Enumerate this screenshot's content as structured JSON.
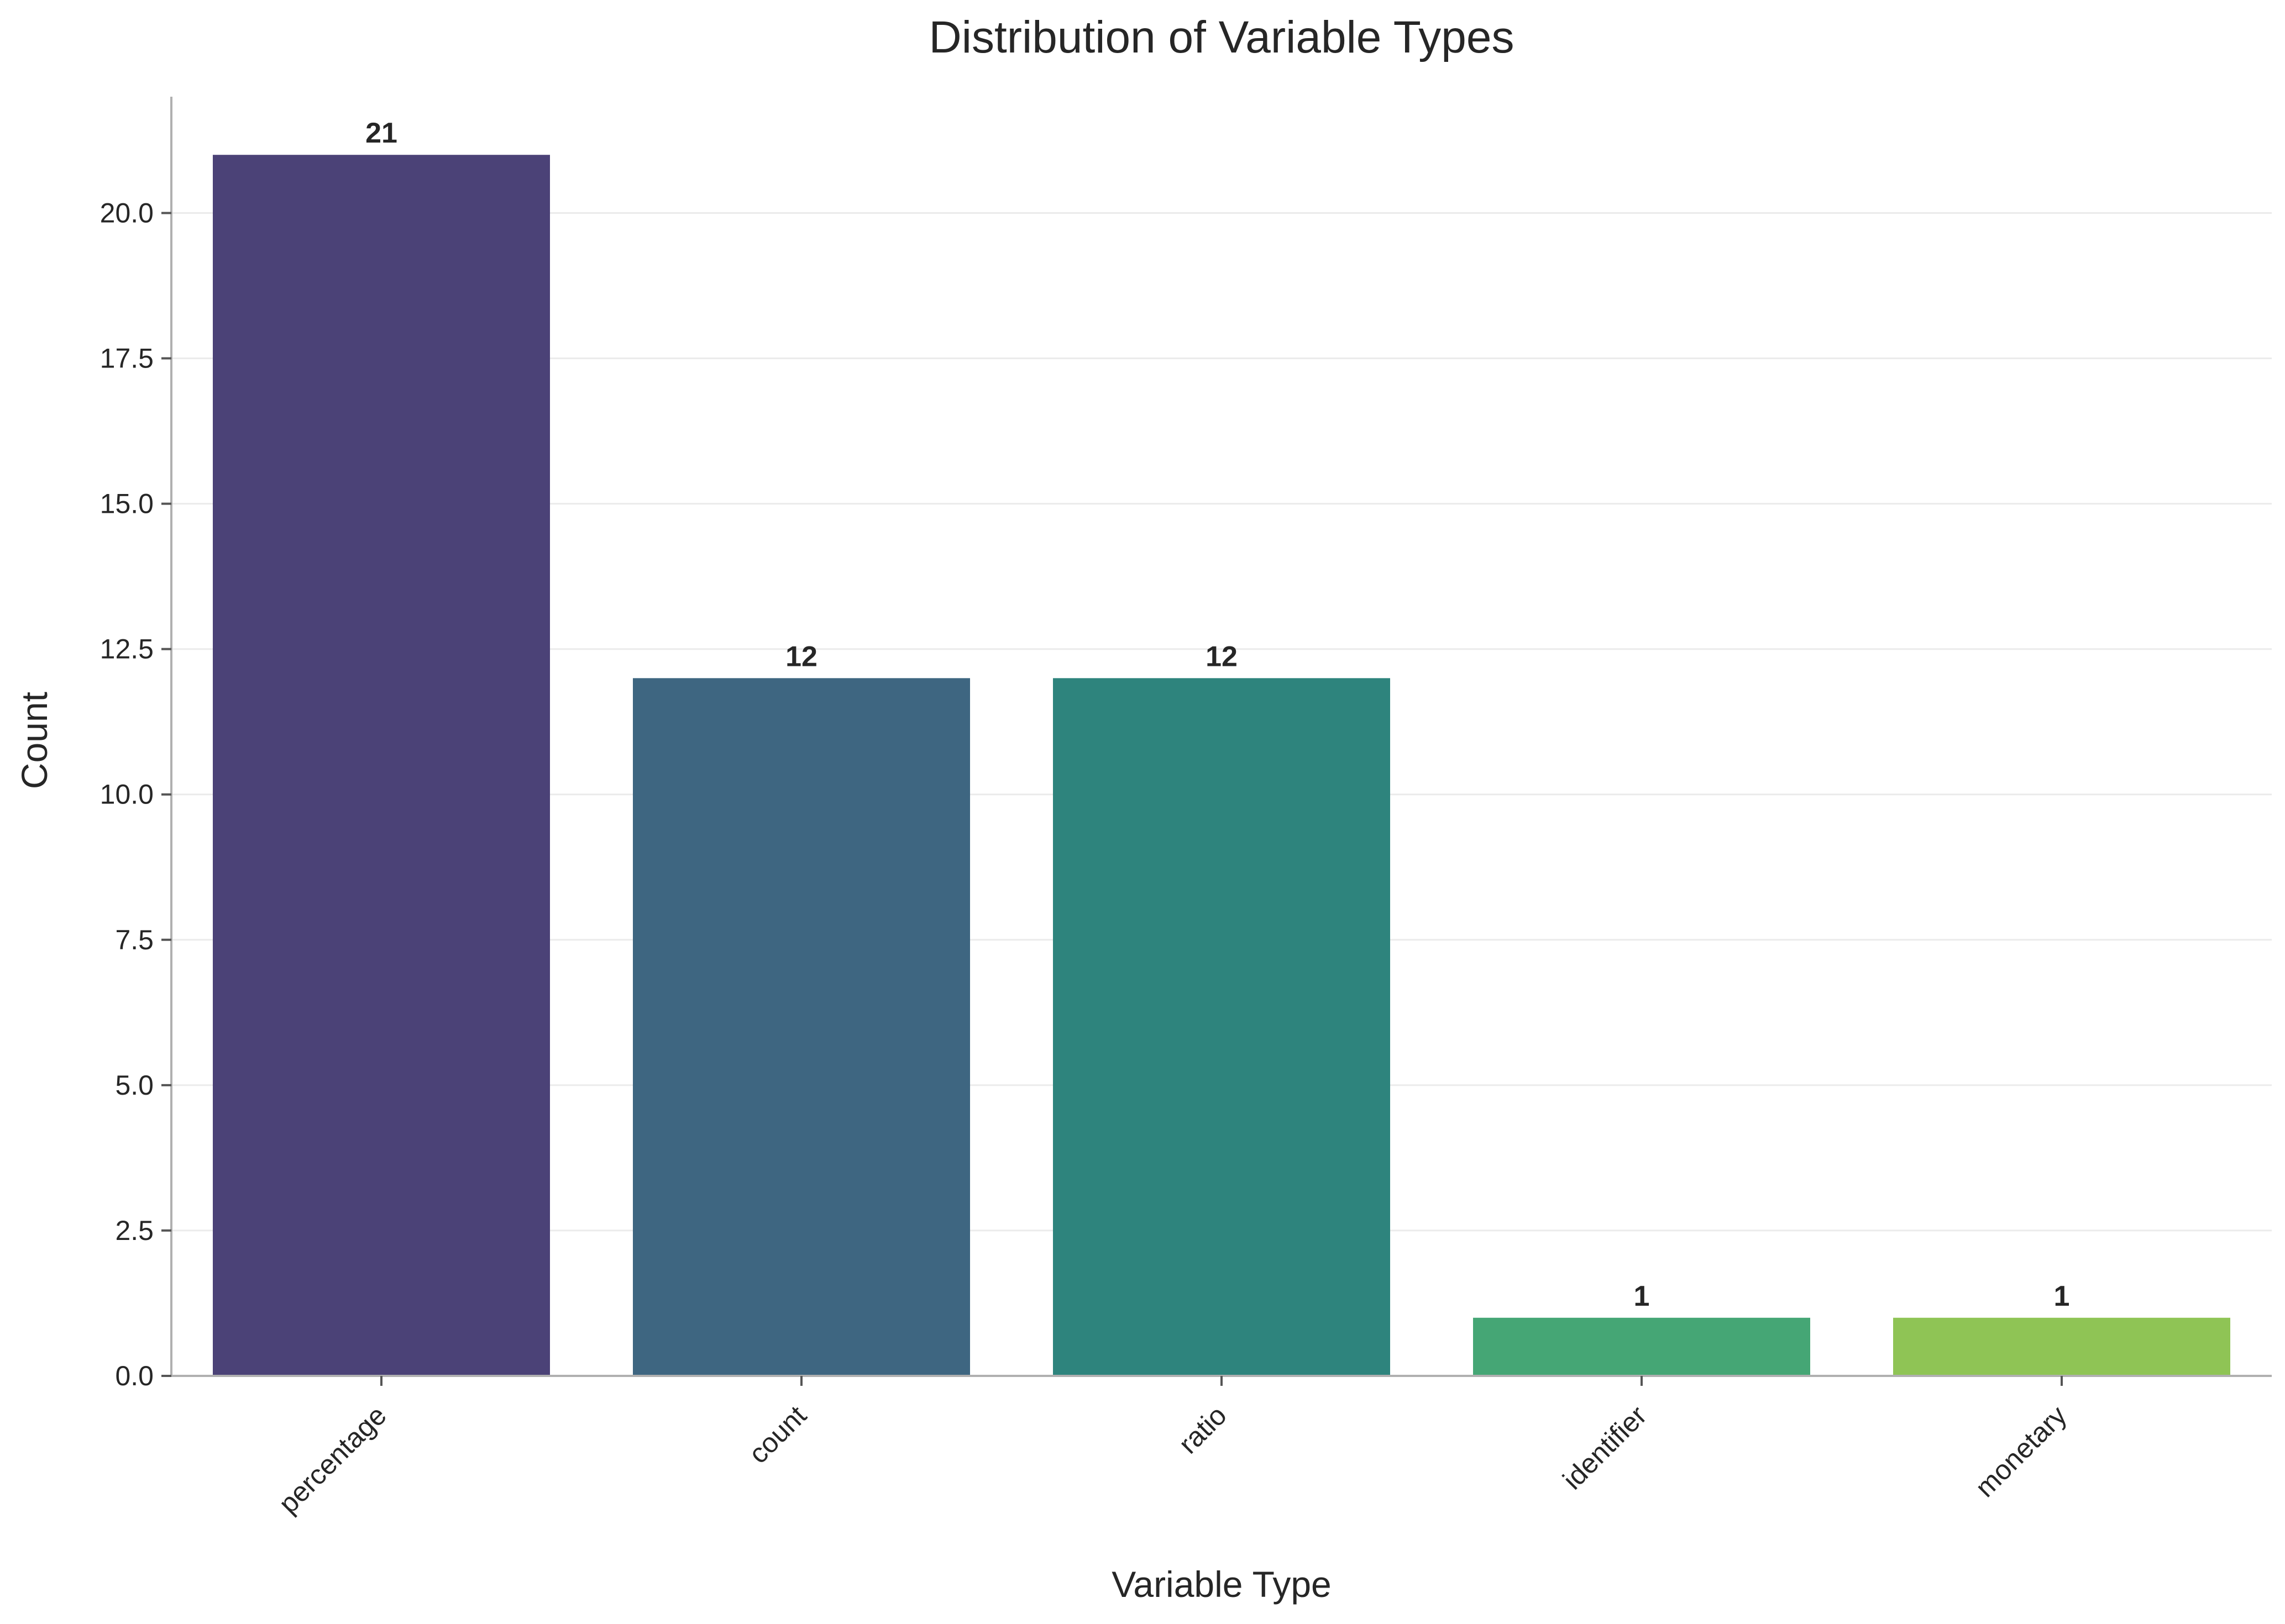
{
  "chart_data": {
    "type": "bar",
    "title": "Distribution of Variable Types",
    "xlabel": "Variable Type",
    "ylabel": "Count",
    "categories": [
      "percentage",
      "count",
      "ratio",
      "identifier",
      "monetary"
    ],
    "values": [
      21,
      12,
      12,
      1,
      1
    ],
    "data_labels": [
      "21",
      "12",
      "12",
      "1",
      "1"
    ],
    "colors": [
      "#4b4277",
      "#3e6681",
      "#2e847d",
      "#45a675",
      "#8fc455"
    ],
    "ylim": [
      0,
      22
    ],
    "yticks": [
      0.0,
      2.5,
      5.0,
      7.5,
      10.0,
      12.5,
      15.0,
      17.5,
      20.0
    ],
    "ytick_labels": [
      "0.0",
      "2.5",
      "5.0",
      "7.5",
      "10.0",
      "12.5",
      "15.0",
      "17.5",
      "20.0"
    ],
    "grid": "y",
    "legend": "none",
    "xtick_rotation": "45 degrees"
  }
}
